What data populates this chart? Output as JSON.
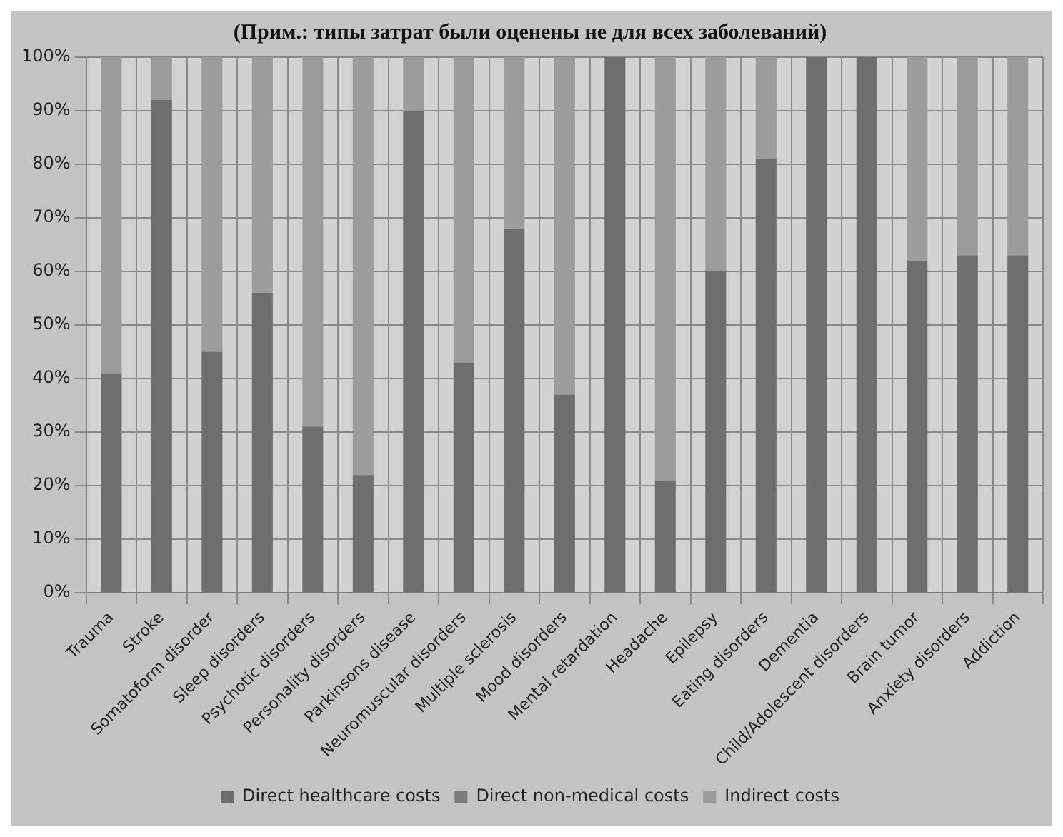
{
  "chart_data": {
    "type": "bar",
    "title": "(Прим.: типы затрат были оценены не для всех заболеваний)",
    "categories": [
      "Trauma",
      "Stroke",
      "Somatoform disorder",
      "Sleep disorders",
      "Psychotic disorders",
      "Personality disorders",
      "Parkinsons disease",
      "Neuromuscular disorders",
      "Multiple sclerosis",
      "Mood disorders",
      "Mental retardation",
      "Headache",
      "Epilepsy",
      "Eating disorders",
      "Dementia",
      "Child/Adolescent disorders",
      "Brain tumor",
      "Anxiety disorders",
      "Addiction"
    ],
    "series": [
      {
        "name": "Direct healthcare costs",
        "color": "#6e6e6e",
        "values": [
          41,
          92,
          45,
          56,
          31,
          22,
          90,
          43,
          68,
          37,
          100,
          21,
          60,
          81,
          100,
          100,
          62,
          63,
          63
        ]
      },
      {
        "name": "Direct non-medical costs",
        "color": "#7c7c7c",
        "values": [
          0,
          0,
          0,
          0,
          0,
          0,
          0,
          0,
          0,
          0,
          0,
          0,
          0,
          0,
          0,
          0,
          0,
          0,
          0
        ]
      },
      {
        "name": "Indirect costs",
        "color": "#9c9c9c",
        "values": [
          59,
          8,
          55,
          44,
          69,
          78,
          10,
          57,
          32,
          63,
          0,
          79,
          40,
          19,
          0,
          0,
          38,
          37,
          37
        ]
      }
    ],
    "stacked": true,
    "ylim": [
      0,
      100
    ],
    "yticks": [
      {
        "value": 0,
        "label": "0%"
      },
      {
        "value": 10,
        "label": "10%"
      },
      {
        "value": 20,
        "label": "20%"
      },
      {
        "value": 30,
        "label": "30%"
      },
      {
        "value": 40,
        "label": "40%"
      },
      {
        "value": 50,
        "label": "50%"
      },
      {
        "value": 60,
        "label": "60%"
      },
      {
        "value": 70,
        "label": "70%"
      },
      {
        "value": 80,
        "label": "80%"
      },
      {
        "value": 90,
        "label": "90%"
      },
      {
        "value": 100,
        "label": "100%"
      }
    ],
    "grid": true,
    "legend": "bottom"
  }
}
